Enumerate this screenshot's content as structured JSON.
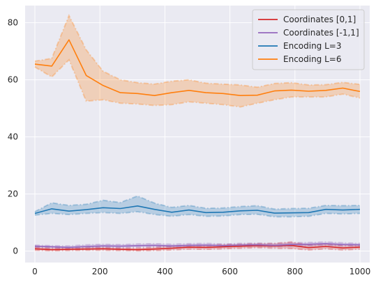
{
  "chart_data": {
    "type": "line",
    "title": "",
    "xlabel": "",
    "ylabel": "",
    "xlim": [
      -30,
      1030
    ],
    "ylim": [
      -4,
      86
    ],
    "xticks": [
      0,
      200,
      400,
      600,
      800,
      1000
    ],
    "yticks": [
      0,
      20,
      40,
      60,
      80
    ],
    "grid": true,
    "background": "#eaeaf2",
    "legend_location": "top-right",
    "x": [
      0,
      52,
      105,
      158,
      210,
      263,
      316,
      368,
      421,
      474,
      526,
      579,
      632,
      684,
      737,
      789,
      842,
      895,
      947,
      1000
    ],
    "series": [
      {
        "name": "Coordinates [0,1]",
        "color": "#d62728",
        "values": [
          0.8,
          0.5,
          0.6,
          0.7,
          0.8,
          0.6,
          0.5,
          0.7,
          1.0,
          1.4,
          1.3,
          1.5,
          1.7,
          1.9,
          1.8,
          2.0,
          1.2,
          1.6,
          1.1,
          1.4
        ],
        "lower": [
          0.3,
          0.1,
          0.2,
          0.3,
          0.3,
          0.2,
          0.1,
          0.2,
          0.4,
          0.7,
          0.6,
          0.8,
          1.0,
          1.2,
          1.0,
          0.9,
          0.4,
          0.8,
          0.4,
          0.7
        ],
        "upper": [
          1.4,
          1.0,
          1.1,
          1.3,
          1.3,
          1.1,
          1.0,
          1.3,
          1.7,
          2.1,
          2.0,
          2.3,
          2.4,
          2.6,
          2.7,
          3.2,
          2.2,
          2.5,
          1.9,
          2.1
        ]
      },
      {
        "name": "Coordinates [-1,1]",
        "color": "#9467bd",
        "values": [
          1.7,
          1.5,
          1.3,
          1.6,
          1.8,
          1.7,
          1.9,
          2.0,
          1.8,
          2.0,
          2.1,
          1.9,
          2.1,
          2.2,
          2.0,
          2.3,
          2.4,
          2.6,
          2.3,
          2.2
        ],
        "lower": [
          1.3,
          1.1,
          0.9,
          1.1,
          1.3,
          1.2,
          1.4,
          1.5,
          1.3,
          1.5,
          1.6,
          1.4,
          1.6,
          1.7,
          1.5,
          1.7,
          1.8,
          2.0,
          1.8,
          1.7
        ],
        "upper": [
          2.1,
          1.9,
          1.8,
          2.2,
          2.4,
          2.3,
          2.5,
          2.6,
          2.4,
          2.6,
          2.7,
          2.5,
          2.7,
          2.8,
          2.6,
          2.9,
          3.0,
          3.2,
          2.9,
          2.7
        ]
      },
      {
        "name": "Encoding L=3",
        "color": "#1f77b4",
        "values": [
          13.2,
          14.8,
          14.0,
          14.5,
          15.2,
          14.9,
          15.8,
          14.6,
          13.6,
          14.4,
          13.5,
          13.6,
          14.1,
          14.3,
          13.3,
          13.4,
          13.5,
          14.6,
          14.4,
          14.6
        ],
        "lower": [
          12.6,
          13.2,
          12.8,
          13.2,
          13.5,
          13.2,
          13.8,
          12.8,
          12.2,
          12.8,
          12.2,
          12.3,
          12.8,
          12.9,
          12.0,
          12.0,
          12.2,
          13.2,
          13.0,
          13.2
        ],
        "upper": [
          13.8,
          16.9,
          16.0,
          16.4,
          17.8,
          17.0,
          19.3,
          16.8,
          15.3,
          16.0,
          15.0,
          15.1,
          15.6,
          15.9,
          14.7,
          14.9,
          15.0,
          16.0,
          15.9,
          16.0
        ]
      },
      {
        "name": "Encoding L=6",
        "color": "#ff7f0e",
        "values": [
          65.5,
          64.8,
          74.0,
          61.5,
          58.0,
          55.5,
          55.2,
          54.5,
          55.5,
          56.3,
          55.5,
          55.2,
          54.5,
          54.6,
          56.1,
          56.4,
          56.0,
          56.3,
          57.1,
          55.9
        ],
        "lower": [
          64.5,
          61.0,
          67.0,
          52.5,
          53.0,
          51.8,
          51.5,
          51.0,
          51.3,
          52.3,
          51.8,
          51.3,
          50.5,
          51.8,
          53.0,
          54.0,
          54.0,
          54.0,
          55.0,
          53.6
        ],
        "upper": [
          66.5,
          67.5,
          82.5,
          70.5,
          63.0,
          60.0,
          59.0,
          58.5,
          59.5,
          60.0,
          58.8,
          58.5,
          58.2,
          57.4,
          58.7,
          59.0,
          58.2,
          58.3,
          59.1,
          58.4
        ]
      }
    ]
  }
}
